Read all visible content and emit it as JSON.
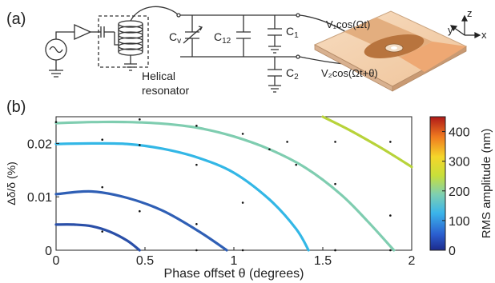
{
  "panel_a": {
    "label": "(a)",
    "labels": {
      "cv": "C",
      "cv_sub": "v",
      "c12": "C",
      "c12_sub": "12",
      "c1": "C",
      "c1_sub": "1",
      "c2": "C",
      "c2_sub": "2",
      "helical_line1": "Helical",
      "helical_line2": "resonator",
      "v1": "V₁cos(Ωt)",
      "v2": "V₂cos(Ωt+θ)",
      "axis_x": "x",
      "axis_y": "y",
      "axis_z": "z"
    }
  },
  "panel_b": {
    "label": "(b)"
  },
  "chart_data": {
    "type": "line",
    "xlabel": "Phase offset θ (degrees)",
    "ylabel": "Δδ/δ (%)",
    "xlim": [
      0,
      2
    ],
    "ylim": [
      0,
      0.025
    ],
    "x_ticks": [
      "0",
      "0.5",
      "1",
      "1.5",
      "2"
    ],
    "x_tick_values": [
      0,
      0.5,
      1,
      1.5,
      2
    ],
    "y_ticks": [
      "0",
      "0.01",
      "0.02"
    ],
    "y_tick_values": [
      0,
      0.01,
      0.02
    ],
    "colorbar": {
      "label": "RMS amplitude (nm)",
      "min": 0,
      "max": 450,
      "ticks": [
        "0",
        "100",
        "200",
        "300",
        "400"
      ],
      "tick_values": [
        0,
        100,
        200,
        300,
        400
      ],
      "colormap": "jet"
    },
    "contours": [
      {
        "level": 60,
        "color": "#2a4fa8",
        "x": [
          0,
          0.1,
          0.2,
          0.3,
          0.4,
          0.47
        ],
        "y": [
          0.0048,
          0.0048,
          0.0045,
          0.0035,
          0.0018,
          0
        ]
      },
      {
        "level": 80,
        "color": "#2f5fb5",
        "x": [
          0,
          0.2,
          0.4,
          0.6,
          0.8,
          0.96
        ],
        "y": [
          0.0105,
          0.011,
          0.0098,
          0.0074,
          0.0036,
          0
        ]
      },
      {
        "level": 130,
        "color": "#33b7e6",
        "x": [
          0,
          0.2,
          0.4,
          0.6,
          0.8,
          1.0,
          1.2,
          1.35,
          1.42
        ],
        "y": [
          0.0199,
          0.02,
          0.0199,
          0.019,
          0.0173,
          0.0145,
          0.0095,
          0.004,
          0
        ]
      },
      {
        "level": 190,
        "color": "#7fcdb0",
        "x": [
          0,
          0.2,
          0.4,
          0.6,
          0.8,
          1.0,
          1.2,
          1.4,
          1.6,
          1.75,
          1.9
        ],
        "y": [
          0.0238,
          0.024,
          0.024,
          0.0237,
          0.0229,
          0.0213,
          0.0189,
          0.0155,
          0.0105,
          0.0055,
          0
        ]
      },
      {
        "level": 260,
        "color": "#b8d33a",
        "x": [
          1.5,
          1.65,
          1.8,
          1.9,
          2.0
        ],
        "y": [
          0.025,
          0.0225,
          0.0197,
          0.0177,
          0.0156
        ]
      }
    ],
    "points": {
      "x": [
        0,
        0.26,
        0.26,
        0.26,
        0.47,
        0.47,
        0.47,
        0.79,
        0.79,
        0.79,
        0.79,
        1.05,
        1.05,
        1.05,
        1.2,
        1.3,
        1.35,
        1.57,
        1.57,
        1.57,
        1.57,
        1.88,
        1.88,
        1.88
      ],
      "y": [
        0.024,
        0.0207,
        0.0118,
        0.0035,
        0.0245,
        0.0197,
        0.0073,
        0.0233,
        0.016,
        0.0049,
        0.0,
        0.0218,
        0.0089,
        0.0,
        0.0189,
        0.0203,
        0.016,
        0.0203,
        0.0124,
        0.0,
        0.0,
        0.0203,
        0.0065,
        0.0
      ]
    }
  }
}
